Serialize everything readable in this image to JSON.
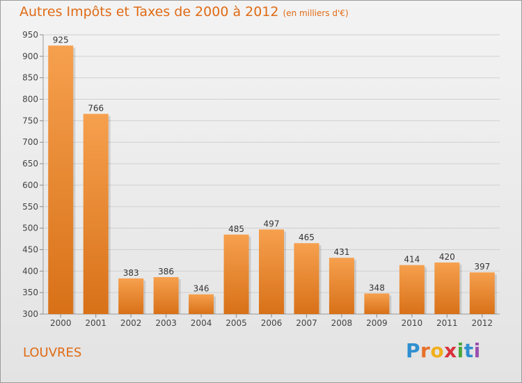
{
  "title": "Autres Impôts et Taxes de 2000 à 2012",
  "title_unit": "(en milliers d'€)",
  "location": "LOUVRES",
  "logo": {
    "text": "Proxiti",
    "letters": [
      {
        "ch": "P",
        "color": "#2f8fd0"
      },
      {
        "ch": "r",
        "color": "#e8702a"
      },
      {
        "ch": "o",
        "color": "#f2b01e"
      },
      {
        "ch": "x",
        "color": "#d8323c"
      },
      {
        "ch": "i",
        "color": "#4aa83c"
      },
      {
        "ch": "t",
        "color": "#2f8fd0"
      },
      {
        "ch": "i",
        "color": "#9a4fb0"
      }
    ]
  },
  "colors": {
    "title": "#e06a14",
    "bar_top": "#f6a04e",
    "bar_bottom": "#d87118",
    "grid": "#cfcfcf"
  },
  "chart_data": {
    "type": "bar",
    "categories": [
      "2000",
      "2001",
      "2002",
      "2003",
      "2004",
      "2005",
      "2006",
      "2007",
      "2008",
      "2009",
      "2010",
      "2011",
      "2012"
    ],
    "values": [
      925,
      766,
      383,
      386,
      346,
      485,
      497,
      465,
      431,
      348,
      414,
      420,
      397
    ],
    "ylim": [
      300,
      950
    ],
    "yticks": [
      300,
      350,
      400,
      450,
      500,
      550,
      600,
      650,
      700,
      750,
      800,
      850,
      900,
      950
    ],
    "grid": true,
    "data_labels": true
  }
}
